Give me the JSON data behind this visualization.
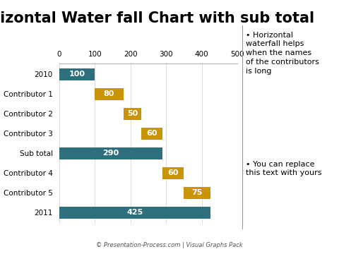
{
  "title": "Horizontal Water fall Chart with sub total",
  "categories": [
    "2010",
    "Contributor 1",
    "Contributor 2",
    "Contributor 3",
    "Sub total",
    "Contributor 4",
    "Contributor 5",
    "2011"
  ],
  "bar_starts": [
    0,
    100,
    180,
    230,
    0,
    290,
    350,
    0
  ],
  "bar_widths": [
    100,
    80,
    50,
    60,
    290,
    60,
    75,
    425
  ],
  "bar_colors": [
    "#2e6f7e",
    "#c9930a",
    "#c9930a",
    "#c9930a",
    "#2e6f7e",
    "#c9930a",
    "#c9930a",
    "#2e6f7e"
  ],
  "bar_labels": [
    "100",
    "80",
    "50",
    "60",
    "290",
    "60",
    "75",
    "425"
  ],
  "xlim": [
    0,
    500
  ],
  "xticks": [
    0,
    100,
    200,
    300,
    400,
    500
  ],
  "bg_color": "#ffffff",
  "footnote": "© Presentation-Process.com | Visual Graphs Pack",
  "bullet_points": [
    "Horizontal\nwaterfall helps\nwhen the names\nof the contributors\nis long",
    "You can replace\nthis text with yours"
  ],
  "title_fontsize": 15,
  "label_fontsize": 8,
  "tick_fontsize": 7.5,
  "bullet_fontsize": 8,
  "ytick_fontsize": 7.5
}
